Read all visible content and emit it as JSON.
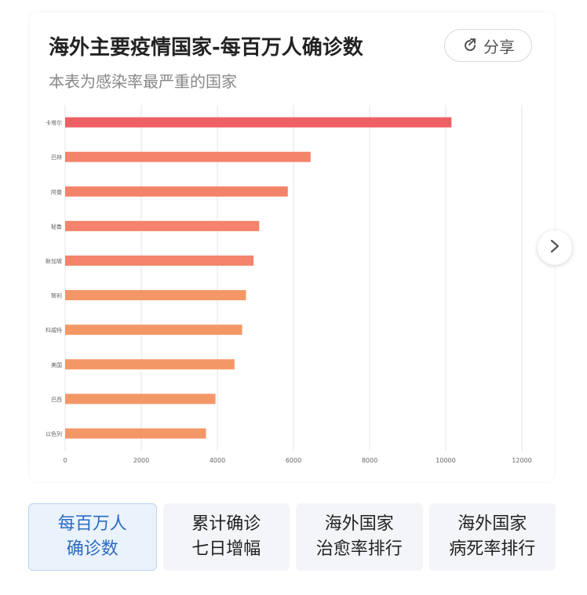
{
  "header": {
    "title": "海外主要疫情国家-每百万人确诊数",
    "subtitle": "本表为感染率最严重的国家",
    "share_label": "分享",
    "share_icon": "share-icon"
  },
  "next_icon": "chevron-right-icon",
  "colors": {
    "bar_top": "#ef6065",
    "bar_mid": "#f3836a",
    "bar_low": "#f39766",
    "grid": "#e6e6e6",
    "tick": "#666666",
    "active_tab_text": "#2b6cc4"
  },
  "chart_data": {
    "type": "bar",
    "orientation": "horizontal",
    "title": "",
    "xlabel": "",
    "ylabel": "",
    "categories": [
      "卡塔尔",
      "巴林",
      "阿曼",
      "秘鲁",
      "新加坡",
      "智利",
      "科威特",
      "美国",
      "巴西",
      "以色列"
    ],
    "values": [
      10150,
      6450,
      5850,
      5100,
      4950,
      4750,
      4650,
      4450,
      3950,
      3700
    ],
    "xlim": [
      0,
      12000
    ],
    "xticks": [
      "0",
      "2000",
      "4000",
      "6000",
      "8000",
      "10000",
      "12000"
    ],
    "grid": true,
    "legend": "none"
  },
  "tabs": [
    {
      "label": "每百万人\n确诊数",
      "active": true
    },
    {
      "label": "累计确诊\n七日增幅",
      "active": false
    },
    {
      "label": "海外国家\n治愈率排行",
      "active": false
    },
    {
      "label": "海外国家\n病死率排行",
      "active": false
    }
  ]
}
